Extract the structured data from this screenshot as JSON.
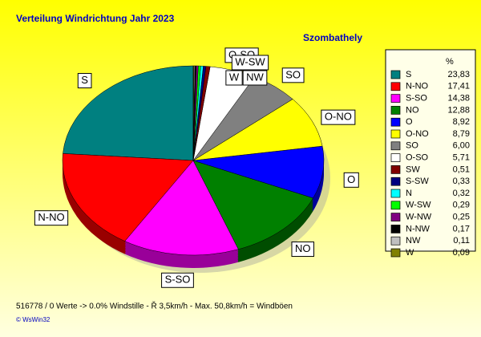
{
  "chart_data": {
    "type": "pie",
    "title": "Verteilung Windrichtung   Jahr 2023",
    "subtitle": "Szombathely",
    "legend_title": "%",
    "categories": [
      "S",
      "N-NO",
      "S-SO",
      "NO",
      "O",
      "O-NO",
      "SO",
      "O-SO",
      "SW",
      "S-SW",
      "N",
      "W-SW",
      "W-NW",
      "N-NW",
      "NW",
      "W"
    ],
    "values": [
      23.83,
      17.41,
      14.38,
      12.88,
      8.92,
      8.79,
      6.0,
      5.71,
      0.51,
      0.33,
      0.32,
      0.29,
      0.25,
      0.17,
      0.11,
      0.09
    ],
    "value_labels": [
      "23,83",
      "17,41",
      "14,38",
      "12,88",
      "8,92",
      "8,79",
      "6,00",
      "5,71",
      "0,51",
      "0,33",
      "0,32",
      "0,29",
      "0,25",
      "0,17",
      "0,11",
      "0,09"
    ],
    "colors": [
      "#008080",
      "#ff0000",
      "#ff00ff",
      "#008000",
      "#0000ff",
      "#ffff00",
      "#808080",
      "#ffffff",
      "#800000",
      "#000080",
      "#00ffff",
      "#00ff00",
      "#800080",
      "#000000",
      "#c0c0c0",
      "#808000"
    ],
    "footer": "516778 / 0 Werte  -> 0.0% Windstille   -   Ř 3,5km/h  -  Max. 50,8km/h = Windböen",
    "copyright": "© WsWin32"
  }
}
